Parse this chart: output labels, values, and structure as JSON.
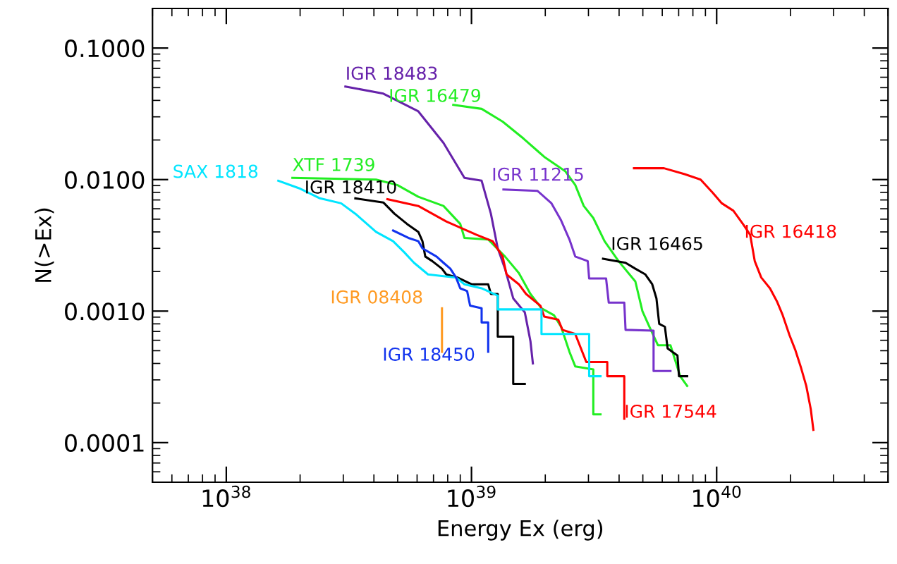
{
  "chart_data": {
    "type": "line",
    "xlabel": "Energy Ex (erg)",
    "ylabel": "N(>Ex)",
    "log": "xy",
    "grid": false,
    "legend": false,
    "marker": "none",
    "line_style": "solid",
    "xlim": [
      5e+37,
      5e+40
    ],
    "ylim": [
      5e-05,
      0.2
    ],
    "xticks": [
      {
        "value": 1e+38,
        "label": "10$^{38}$"
      },
      {
        "value": 1e+39,
        "label": "10$^{39}$"
      },
      {
        "value": 1e+40,
        "label": "10$^{40}$"
      }
    ],
    "yticks": [
      {
        "value": 0.0001,
        "label": "0.0001"
      },
      {
        "value": 0.001,
        "label": "0.0010"
      },
      {
        "value": 0.01,
        "label": "0.0100"
      },
      {
        "value": 0.1,
        "label": "0.1000"
      }
    ],
    "series": [
      {
        "name": "IGR 18483",
        "color": "#6622aa",
        "x": [
          3.06e+38,
          4.37e+38,
          6.07e+38,
          7.69e+38,
          9.36e+38,
          1.1e+39,
          1.2e+39,
          1.28e+39,
          1.37e+39,
          1.48e+39,
          1.65e+39,
          1.74e+39,
          1.78e+39
        ],
        "values": [
          0.051,
          0.045,
          0.033,
          0.019,
          0.0103,
          0.0098,
          0.0055,
          0.003,
          0.0021,
          0.00125,
          0.00098,
          0.00059,
          0.0004
        ]
      },
      {
        "name": "IGR 16479",
        "color": "#22ee22",
        "x": [
          8.43e+38,
          1.1e+39,
          1.34e+39,
          1.63e+39,
          1.98e+39,
          2.41e+39,
          2.65e+39,
          2.87e+39,
          3.14e+39,
          3.49e+39,
          3.98e+39,
          4.66e+39,
          4.98e+39,
          5.32e+39,
          5.76e+39,
          6.48e+39,
          7.1e+39,
          7.58e+39
        ],
        "values": [
          0.037,
          0.0345,
          0.0276,
          0.0205,
          0.0149,
          0.0116,
          0.0091,
          0.0063,
          0.0051,
          0.0034,
          0.0024,
          0.00168,
          0.001,
          0.00076,
          0.00055,
          0.00055,
          0.00032,
          0.00027
        ]
      },
      {
        "name": "IGR 11215",
        "color": "#7733cc",
        "x": [
          1.35e+39,
          1.86e+39,
          2.12e+39,
          2.32e+39,
          2.51e+39,
          2.65e+39,
          2.98e+39,
          3.02e+39,
          3.54e+39,
          3.63e+39,
          4.2e+39,
          4.25e+39,
          5.53e+39,
          5.53e+39,
          6.48e+39
        ],
        "values": [
          0.0084,
          0.0082,
          0.0066,
          0.0049,
          0.0035,
          0.0026,
          0.0024,
          0.00177,
          0.00177,
          0.00116,
          0.00116,
          0.00072,
          0.00071,
          0.00035,
          0.00035
        ]
      },
      {
        "name": "IGR 16465",
        "color": "#000000",
        "x": [
          3.44e+39,
          4.25e+39,
          4.66e+39,
          5.12e+39,
          5.46e+39,
          5.68e+39,
          5.83e+39,
          6.15e+39,
          6.31e+39,
          6.92e+39,
          7.02e+39,
          7.58e+39
        ],
        "values": [
          0.0025,
          0.00233,
          0.0021,
          0.0019,
          0.0016,
          0.00125,
          0.0008,
          0.00076,
          0.00052,
          0.00046,
          0.00032,
          0.00032
        ]
      },
      {
        "name": "IGR 16418",
        "color": "#ff0000",
        "x": [
          4.6e+39,
          6.1e+39,
          7.4e+39,
          8.6e+39,
          9.6e+39,
          1.05e+40,
          1.17e+40,
          1.29e+40,
          1.37e+40,
          1.43e+40,
          1.52e+40,
          1.65e+40,
          1.76e+40,
          1.86e+40,
          1.98e+40,
          2.09e+40,
          2.2e+40,
          2.32e+40,
          2.42e+40,
          2.48e+40
        ],
        "values": [
          0.0122,
          0.0122,
          0.011,
          0.01,
          0.008,
          0.0066,
          0.0058,
          0.0045,
          0.0038,
          0.0024,
          0.0018,
          0.00149,
          0.00119,
          0.00093,
          0.00066,
          0.00051,
          0.00038,
          0.00027,
          0.00018,
          0.000125
        ]
      },
      {
        "name": "XTF 1739",
        "color": "#22ee22",
        "x": [
          1.86e+38,
          4.08e+38,
          4.98e+38,
          6.07e+38,
          7.69e+38,
          9e+38,
          9.36e+38,
          1.17e+39,
          1.37e+39,
          1.56e+39,
          1.74e+39,
          1.93e+39,
          2.17e+39,
          2.32e+39,
          2.51e+39,
          2.65e+39,
          3.14e+39,
          3.14e+39,
          3.36e+39
        ],
        "values": [
          0.0103,
          0.01,
          0.0091,
          0.0074,
          0.0063,
          0.0046,
          0.0036,
          0.0035,
          0.0026,
          0.00195,
          0.00135,
          0.00105,
          0.00093,
          0.00076,
          0.00049,
          0.00038,
          0.00036,
          0.000164,
          0.000164
        ]
      },
      {
        "name": "IGR 17544",
        "color": "#ff0000",
        "x": [
          4.54e+38,
          6.07e+38,
          7.89e+38,
          1.05e+39,
          1.22e+39,
          1.34e+39,
          1.39e+39,
          1.56e+39,
          1.67e+39,
          1.91e+39,
          1.98e+39,
          2.26e+39,
          2.35e+39,
          2.65e+39,
          2.94e+39,
          3.58e+39,
          3.58e+39,
          4.2e+39,
          4.2e+39
        ],
        "values": [
          0.0071,
          0.0063,
          0.0048,
          0.0038,
          0.0034,
          0.0026,
          0.0019,
          0.0016,
          0.00135,
          0.0011,
          0.00091,
          0.00086,
          0.00072,
          0.00067,
          0.00041,
          0.00041,
          0.00032,
          0.00032,
          0.000152
        ]
      },
      {
        "name": "IGR 18410",
        "color": "#000000",
        "x": [
          3.36e+38,
          4.37e+38,
          4.85e+38,
          5.46e+38,
          6.07e+38,
          6.31e+38,
          6.48e+38,
          6.92e+38,
          7.58e+38,
          7.89e+38,
          8.77e+38,
          1e+39,
          1.17e+39,
          1.2e+39,
          1.28e+39,
          1.28e+39,
          1.48e+39,
          1.48e+39,
          1.65e+39
        ],
        "values": [
          0.0072,
          0.0067,
          0.0055,
          0.0046,
          0.004,
          0.0034,
          0.0026,
          0.0024,
          0.0021,
          0.0019,
          0.0018,
          0.0016,
          0.0016,
          0.00135,
          0.00135,
          0.00064,
          0.00064,
          0.00028,
          0.00028
        ]
      },
      {
        "name": "SAX 1818",
        "color": "#00e5ff",
        "x": [
          1.63e+38,
          1.98e+38,
          2.41e+38,
          2.94e+38,
          3.36e+38,
          4.08e+38,
          4.79e+38,
          5.32e+38,
          5.83e+38,
          6.65e+38,
          8.65e+38,
          9.36e+38,
          1.1e+39,
          1.28e+39,
          1.28e+39,
          1.93e+39,
          1.93e+39,
          3.02e+39,
          3.02e+39,
          3.36e+39
        ],
        "values": [
          0.0098,
          0.0086,
          0.0072,
          0.0066,
          0.0055,
          0.004,
          0.0034,
          0.0028,
          0.00233,
          0.0019,
          0.0018,
          0.0016,
          0.00149,
          0.00131,
          0.00103,
          0.00103,
          0.00067,
          0.00067,
          0.00032,
          0.00032
        ]
      },
      {
        "name": "IGR 18450",
        "color": "#1133ee",
        "x": [
          4.79e+38,
          5.53e+38,
          6.07e+38,
          6.31e+38,
          7.2e+38,
          7.69e+38,
          8.2e+38,
          8.65e+38,
          9e+38,
          9.6e+38,
          9.87e+38,
          1.1e+39,
          1.1e+39,
          1.17e+39,
          1.17e+39
        ],
        "values": [
          0.0041,
          0.0036,
          0.0034,
          0.003,
          0.0026,
          0.00233,
          0.0021,
          0.0018,
          0.00149,
          0.00142,
          0.0011,
          0.00105,
          0.00082,
          0.00082,
          0.00049
        ]
      },
      {
        "name": "IGR 08408",
        "color": "#ff9a22",
        "x": [
          7.58e+38,
          7.58e+38
        ],
        "values": [
          0.00105,
          0.00049
        ]
      }
    ]
  }
}
